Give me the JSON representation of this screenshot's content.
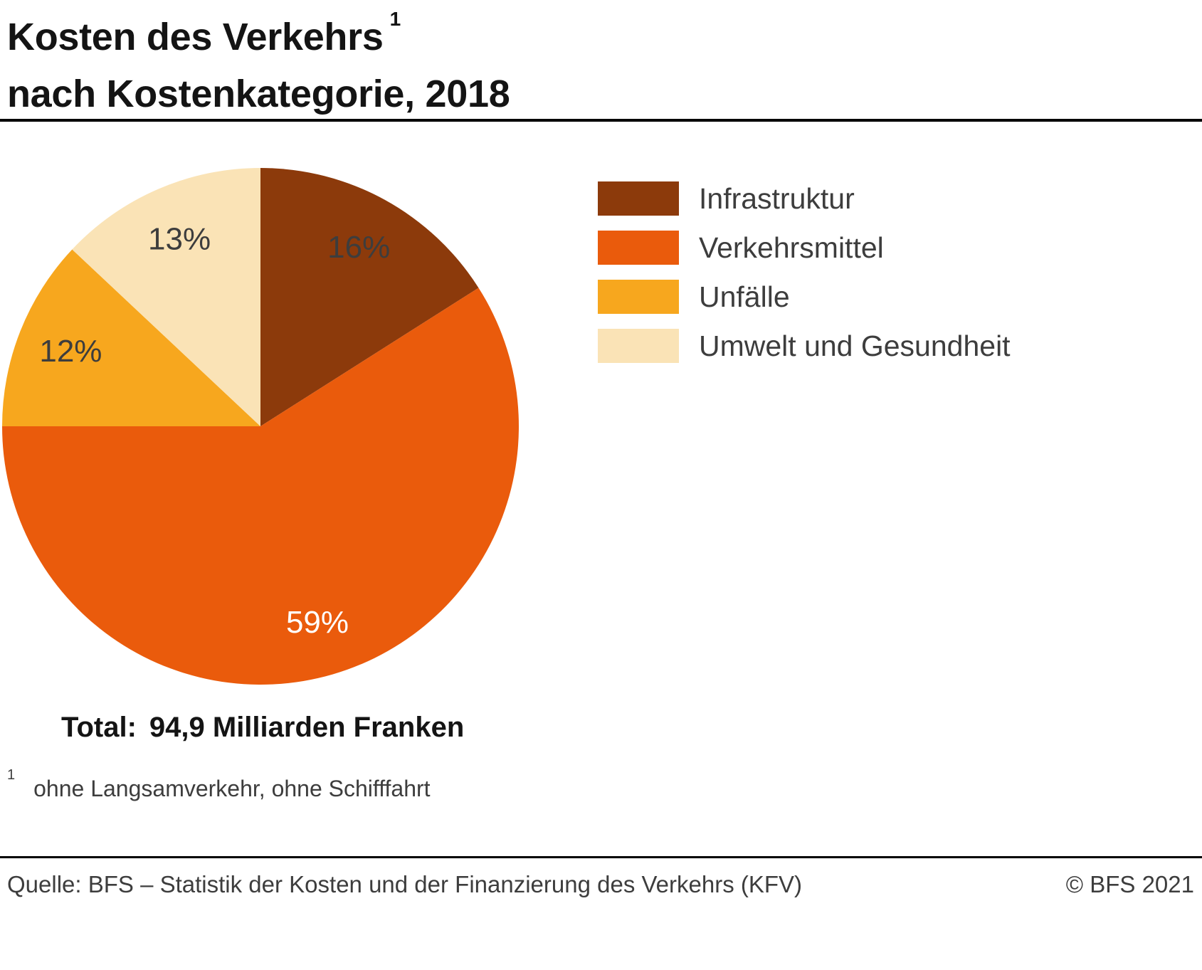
{
  "title": {
    "line1": "Kosten des Verkehrs",
    "footnote_marker": "1",
    "line2": "nach Kostenkategorie, 2018"
  },
  "chart_data": {
    "type": "pie",
    "title": "Kosten des Verkehrs nach Kostenkategorie, 2018",
    "unit": "%",
    "direction": "clockwise",
    "start_angle_deg": 0,
    "legend_position": "right",
    "slices": [
      {
        "label": "Infrastruktur",
        "value": 16,
        "value_label": "16%",
        "color": "#8C3A0B",
        "label_color": "#3d3d3d"
      },
      {
        "label": "Verkehrsmittel",
        "value": 59,
        "value_label": "59%",
        "color": "#EA5B0C",
        "label_color": "#ffffff"
      },
      {
        "label": "Unfälle",
        "value": 12,
        "value_label": "12%",
        "color": "#F7A71E",
        "label_color": "#3d3d3d"
      },
      {
        "label": "Umwelt und Gesundheit",
        "value": 13,
        "value_label": "13%",
        "color": "#FAE3B6",
        "label_color": "#3d3d3d"
      }
    ],
    "total_label": "Total:",
    "total_value": "94,9 Milliarden Franken"
  },
  "footnote": {
    "marker": "1",
    "text": "ohne Langsamverkehr, ohne Schifffahrt"
  },
  "footer": {
    "source": "Quelle: BFS – Statistik der Kosten und der Finanzierung des Verkehrs (KFV)",
    "copyright": "© BFS 2021"
  }
}
